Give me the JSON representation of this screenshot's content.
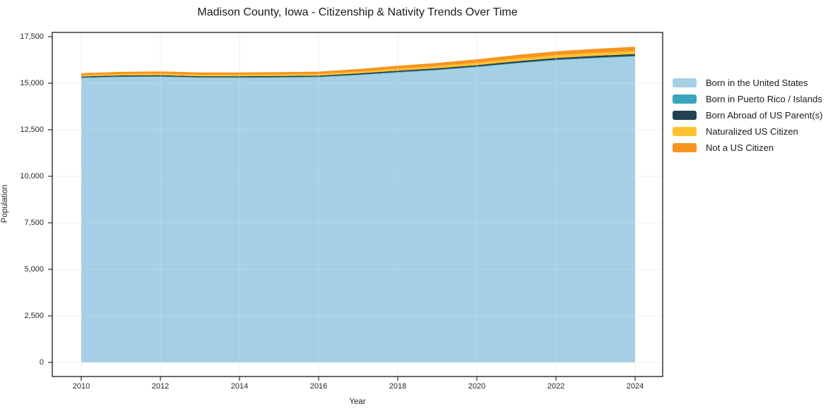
{
  "title": "Madison County, Iowa - Citizenship & Nativity Trends Over Time",
  "chart_data": {
    "type": "area",
    "stacked": true,
    "title": "Madison County, Iowa - Citizenship & Nativity Trends Over Time",
    "xlabel": "Year",
    "ylabel": "Population",
    "grid": true,
    "legend_position": "right",
    "x": [
      2010,
      2011,
      2012,
      2013,
      2014,
      2015,
      2016,
      2017,
      2018,
      2019,
      2020,
      2021,
      2022,
      2023,
      2024
    ],
    "xticks": [
      2010,
      2012,
      2014,
      2016,
      2018,
      2020,
      2022,
      2024
    ],
    "yticks": [
      0,
      2500,
      5000,
      7500,
      10000,
      12500,
      15000,
      17500
    ],
    "ytick_labels": [
      "0",
      "2,500",
      "5,000",
      "7,500",
      "10,000",
      "12,500",
      "15,000",
      "17,500"
    ],
    "xlim": [
      2010,
      2024
    ],
    "ylim": [
      0,
      17500
    ],
    "series": [
      {
        "name": "Born in the United States",
        "color": "#a5cfe4",
        "values": [
          15280,
          15330,
          15340,
          15290,
          15290,
          15300,
          15320,
          15430,
          15570,
          15700,
          15860,
          16060,
          16230,
          16340,
          16430
        ]
      },
      {
        "name": "Born in Puerto Rico / Islands",
        "color": "#39a5bd",
        "values": [
          25,
          28,
          30,
          27,
          25,
          26,
          28,
          30,
          32,
          31,
          33,
          35,
          38,
          40,
          42
        ]
      },
      {
        "name": "Born Abroad of US Parent(s)",
        "color": "#234250",
        "values": [
          55,
          60,
          62,
          58,
          60,
          61,
          60,
          65,
          70,
          73,
          78,
          83,
          88,
          92,
          95
        ]
      },
      {
        "name": "Naturalized US Citizen",
        "color": "#fdc22f",
        "values": [
          70,
          74,
          78,
          80,
          82,
          85,
          88,
          96,
          106,
          116,
          126,
          138,
          148,
          156,
          163
        ]
      },
      {
        "name": "Not a US Citizen",
        "color": "#f7941e",
        "values": [
          110,
          117,
          122,
          119,
          118,
          121,
          126,
          140,
          156,
          170,
          186,
          200,
          212,
          222,
          230
        ]
      }
    ],
    "style": {
      "text_color": "#262626",
      "title_color": "#1a1a1a",
      "grid_color": "#dcdcdc",
      "axis_color": "#2b2b2b",
      "background": "#ffffff"
    }
  }
}
